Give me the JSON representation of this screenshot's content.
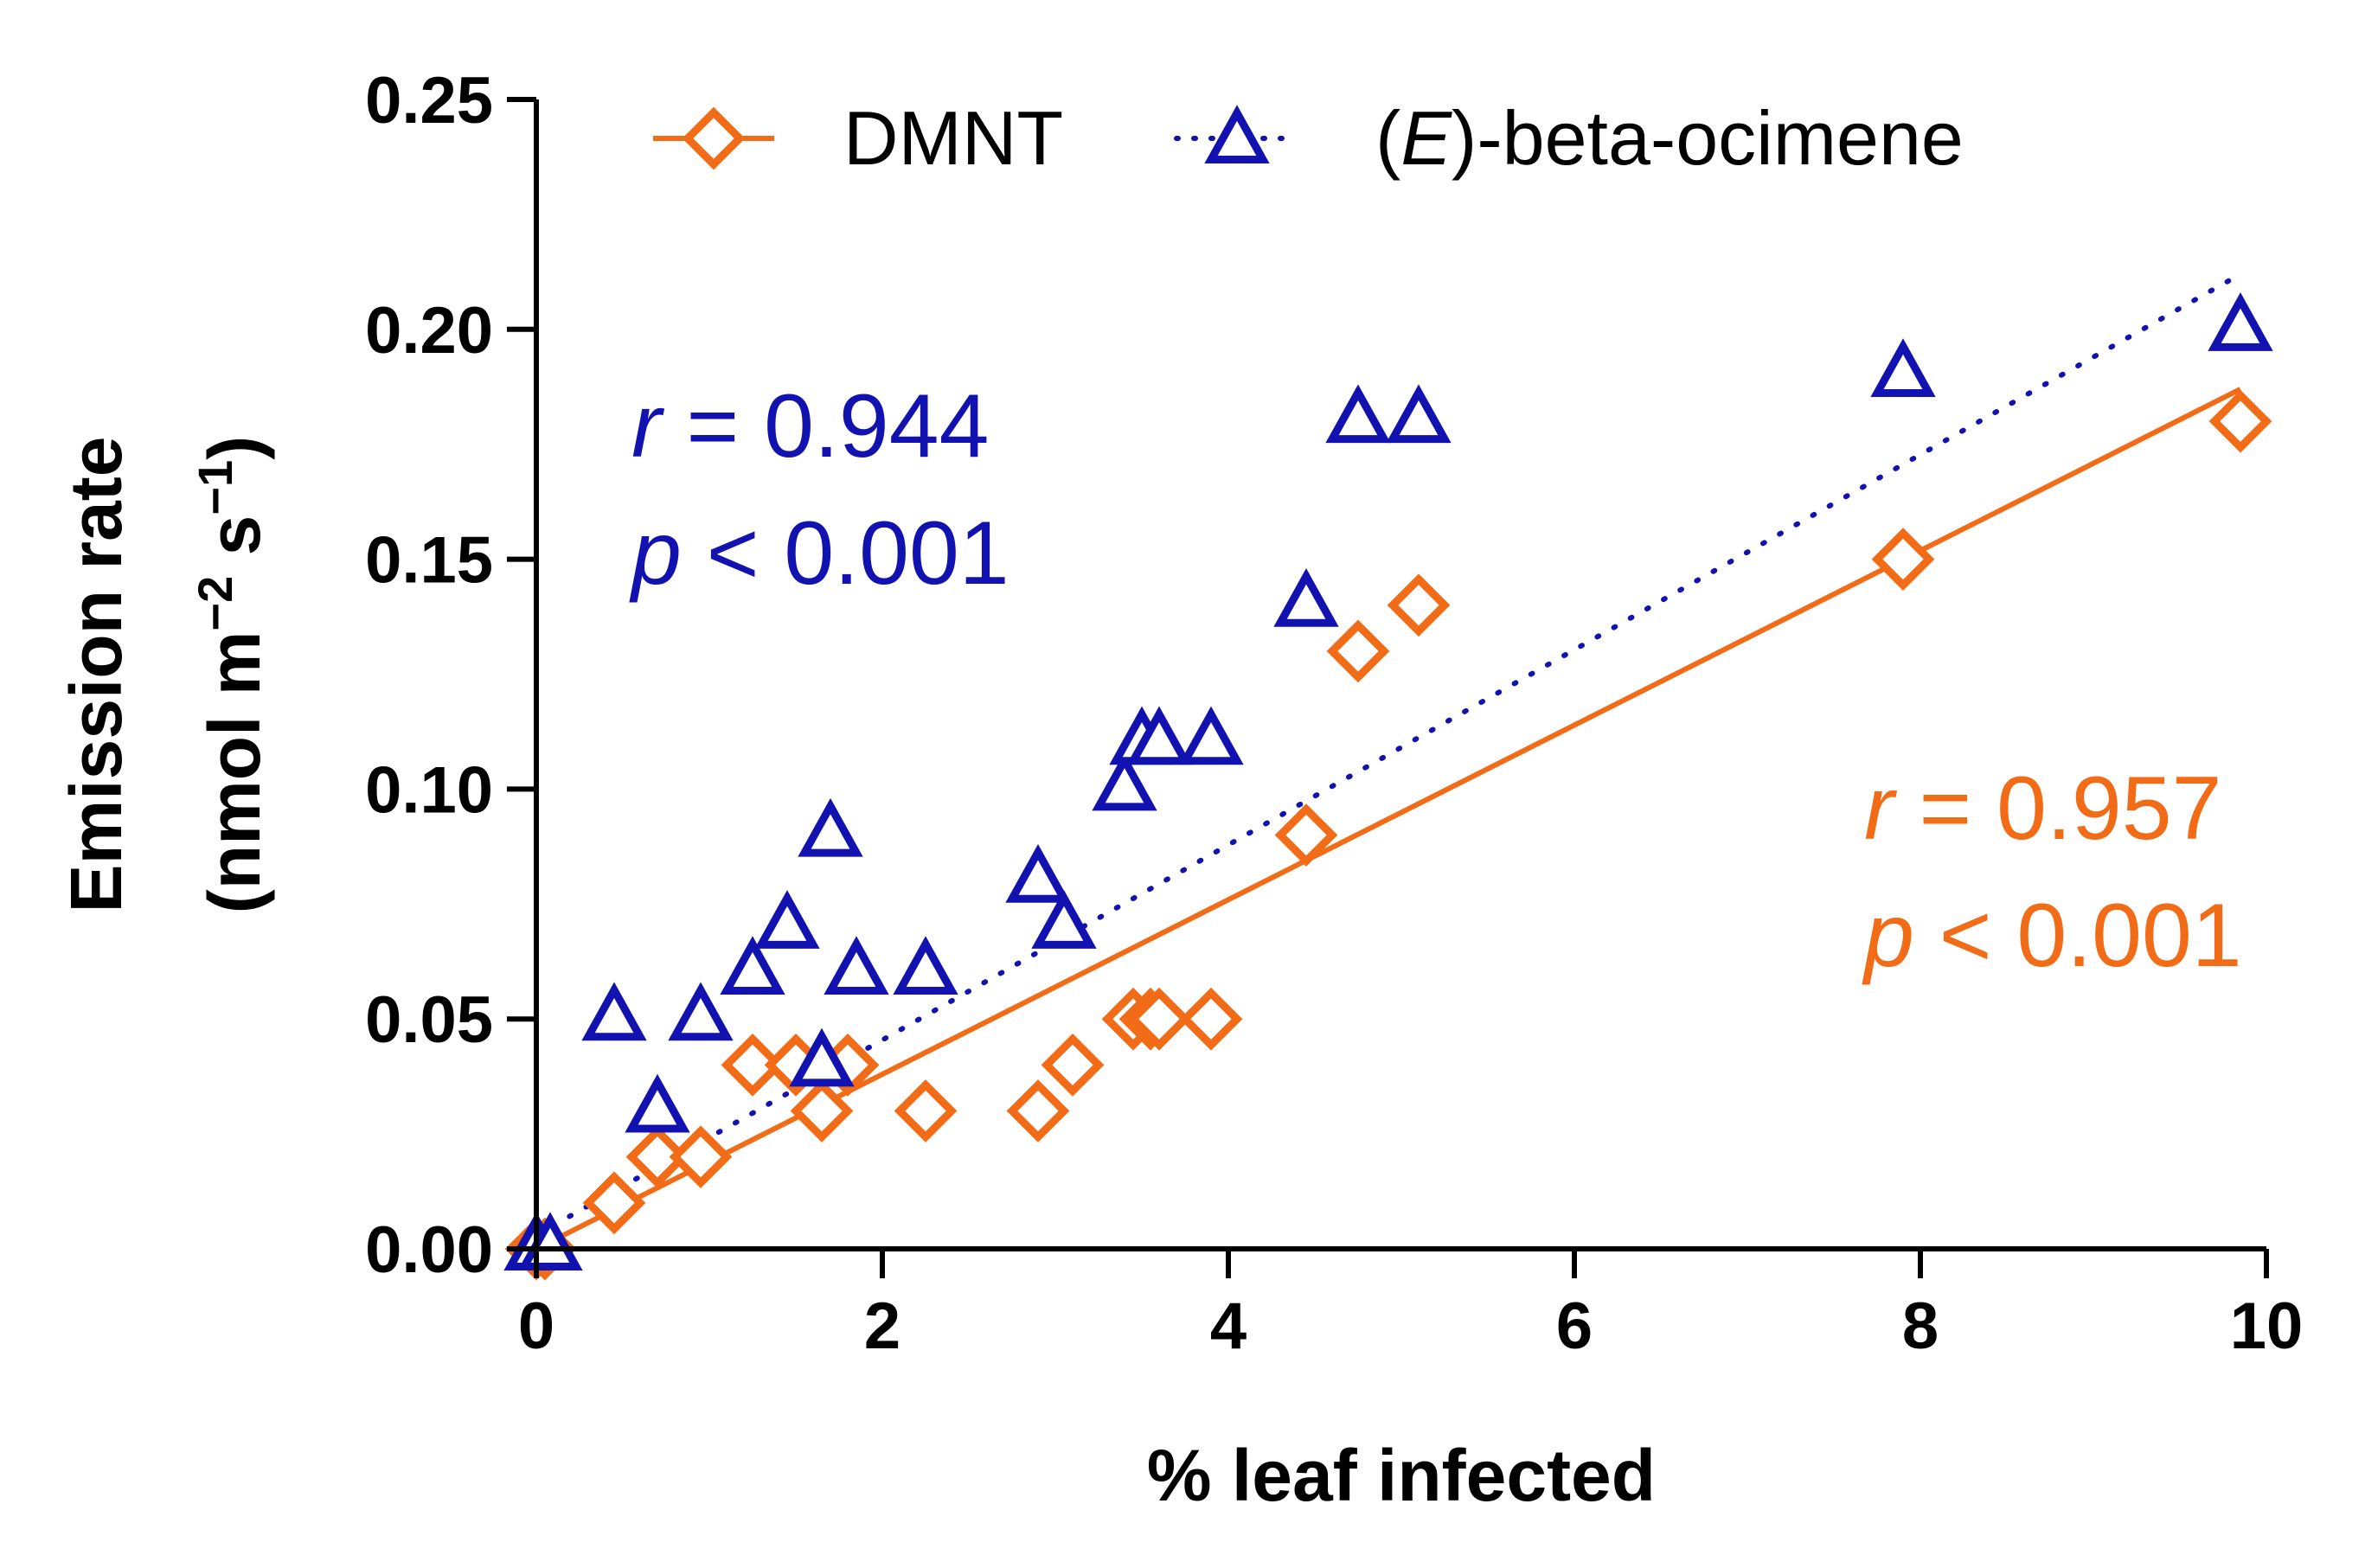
{
  "chart_data": {
    "type": "scatter",
    "xlabel": "% leaf infected",
    "ylabel_line1": "Emission rate",
    "ylabel_line2_prefix": "(nmol m",
    "ylabel_exp1": "−2",
    "ylabel_mid": " s",
    "ylabel_exp2": "−1",
    "ylabel_suffix": ")",
    "xlim": [
      0,
      10
    ],
    "ylim": [
      0,
      0.25
    ],
    "x_ticks": [
      0,
      2,
      4,
      6,
      8,
      10
    ],
    "x_tick_labels": [
      "0",
      "2",
      "4",
      "6",
      "8",
      "10"
    ],
    "y_ticks": [
      0,
      0.05,
      0.1,
      0.15,
      0.2,
      0.25
    ],
    "y_tick_labels": [
      "0.00",
      "0.05",
      "0.10",
      "0.15",
      "0.20",
      "0.25"
    ],
    "grid": false,
    "legend_position": "top",
    "series": [
      {
        "name": "DMNT",
        "color": "#f26b16",
        "marker": "diamond",
        "line_style": "solid",
        "fit_line": {
          "x": [
            0,
            9.85
          ],
          "y": [
            0,
            0.187
          ]
        },
        "stat_r_label": "r",
        "stat_r_value": " = 0.957",
        "stat_p_label": "p",
        "stat_p_value": " < 0.001",
        "points": [
          {
            "x": 0.0,
            "y": 0.0
          },
          {
            "x": 0.05,
            "y": 0.0
          },
          {
            "x": 0.45,
            "y": 0.01
          },
          {
            "x": 0.7,
            "y": 0.02
          },
          {
            "x": 0.95,
            "y": 0.02
          },
          {
            "x": 1.25,
            "y": 0.04
          },
          {
            "x": 1.5,
            "y": 0.04
          },
          {
            "x": 1.65,
            "y": 0.03
          },
          {
            "x": 1.8,
            "y": 0.04
          },
          {
            "x": 2.25,
            "y": 0.03
          },
          {
            "x": 2.9,
            "y": 0.03
          },
          {
            "x": 3.1,
            "y": 0.04
          },
          {
            "x": 3.45,
            "y": 0.05
          },
          {
            "x": 3.55,
            "y": 0.05
          },
          {
            "x": 3.6,
            "y": 0.05
          },
          {
            "x": 3.9,
            "y": 0.05
          },
          {
            "x": 4.45,
            "y": 0.09
          },
          {
            "x": 4.75,
            "y": 0.13
          },
          {
            "x": 5.1,
            "y": 0.14
          },
          {
            "x": 7.9,
            "y": 0.15
          },
          {
            "x": 9.85,
            "y": 0.18
          }
        ]
      },
      {
        "name_prefix": "(",
        "name_italic": "E",
        "name_suffix": ")-beta-ocimene",
        "color": "#1212b0",
        "marker": "triangle",
        "line_style": "dotted",
        "fit_line": {
          "x": [
            0,
            9.85
          ],
          "y": [
            0.003,
            0.212
          ]
        },
        "stat_r_label": "r",
        "stat_r_value": " = 0.944",
        "stat_p_label": "p",
        "stat_p_value": " < 0.001",
        "points": [
          {
            "x": 0.0,
            "y": 0.0
          },
          {
            "x": 0.08,
            "y": 0.0
          },
          {
            "x": 0.45,
            "y": 0.05
          },
          {
            "x": 0.7,
            "y": 0.03
          },
          {
            "x": 0.95,
            "y": 0.05
          },
          {
            "x": 1.25,
            "y": 0.06
          },
          {
            "x": 1.45,
            "y": 0.07
          },
          {
            "x": 1.65,
            "y": 0.04
          },
          {
            "x": 1.7,
            "y": 0.09
          },
          {
            "x": 1.85,
            "y": 0.06
          },
          {
            "x": 2.25,
            "y": 0.06
          },
          {
            "x": 2.9,
            "y": 0.08
          },
          {
            "x": 3.05,
            "y": 0.07
          },
          {
            "x": 3.4,
            "y": 0.1
          },
          {
            "x": 3.5,
            "y": 0.11
          },
          {
            "x": 3.6,
            "y": 0.11
          },
          {
            "x": 3.9,
            "y": 0.11
          },
          {
            "x": 4.45,
            "y": 0.14
          },
          {
            "x": 4.75,
            "y": 0.18
          },
          {
            "x": 5.1,
            "y": 0.18
          },
          {
            "x": 7.9,
            "y": 0.19
          },
          {
            "x": 9.85,
            "y": 0.2
          }
        ]
      }
    ]
  }
}
